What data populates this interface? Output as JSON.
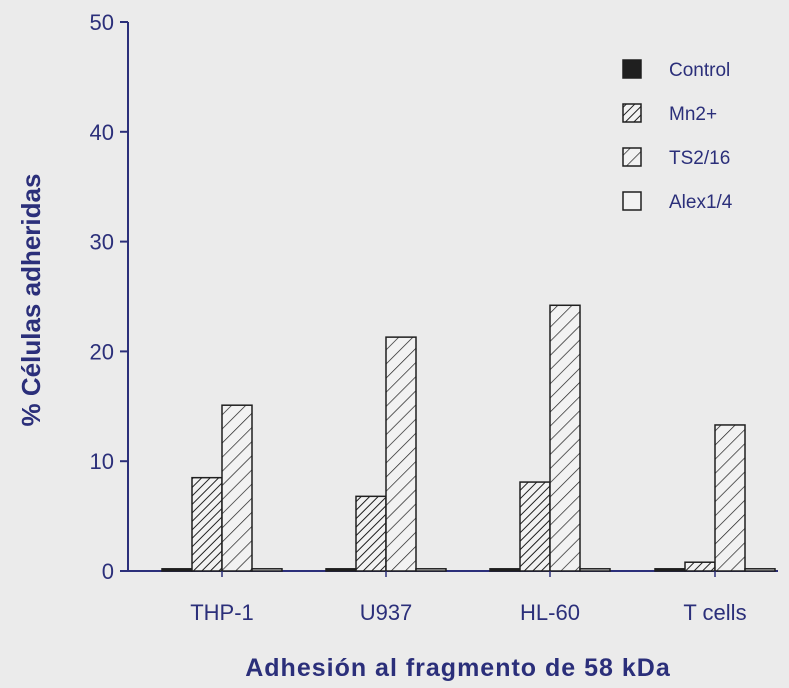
{
  "chart_data": {
    "type": "bar",
    "title": "",
    "xlabel": "Adhesión al fragmento de 58 kDa",
    "ylabel": "% Células adheridas",
    "ylim": [
      0,
      50
    ],
    "yticks": [
      0,
      10,
      20,
      30,
      40,
      50
    ],
    "grid": false,
    "legend_position": "top-right",
    "categories": [
      "THP-1",
      "U937",
      "HL-60",
      "T cells"
    ],
    "series": [
      {
        "name": "Control",
        "pattern": "solid",
        "values": [
          0.2,
          0.2,
          0.2,
          0.2
        ]
      },
      {
        "name": "Mn2+",
        "pattern": "dense-hatch",
        "values": [
          8.5,
          6.8,
          8.1,
          0.8
        ]
      },
      {
        "name": "TS2/16",
        "pattern": "hatch",
        "values": [
          15.1,
          21.3,
          24.2,
          13.3
        ]
      },
      {
        "name": "Alex1/4",
        "pattern": "empty",
        "values": [
          0.2,
          0.2,
          0.2,
          0.2
        ]
      }
    ],
    "colors": {
      "axis": "#2b2f7a",
      "bar_stroke": "#1f1f1f",
      "background": "#ebebeb"
    }
  }
}
